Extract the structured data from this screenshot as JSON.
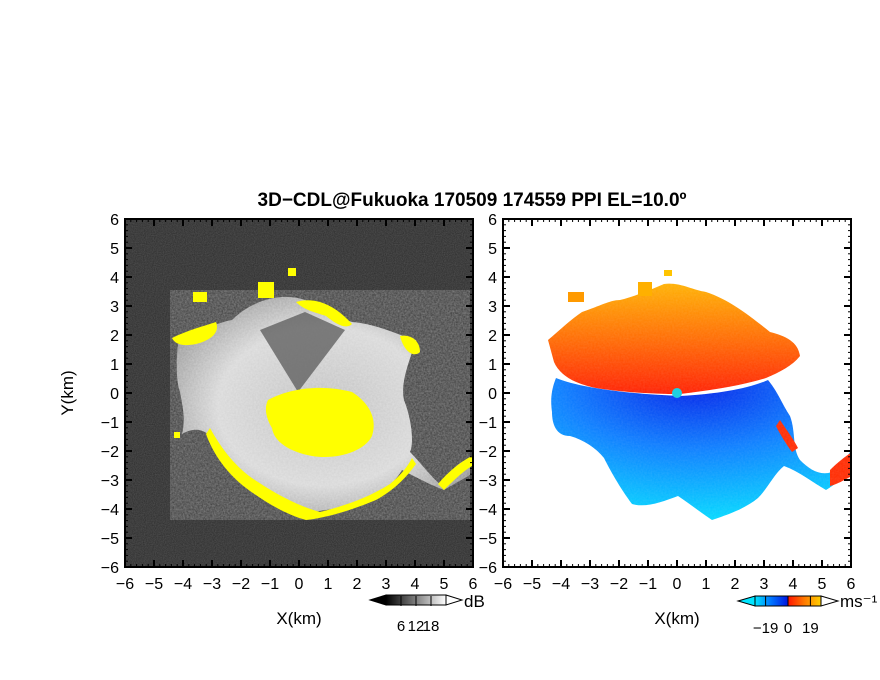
{
  "chart_data": {
    "title": "3D−CDL@Fukuoka 170509 174559 PPI EL=10.0º",
    "panels": [
      {
        "type": "heatmap",
        "name": "reflectivity",
        "xlabel": "X(km)",
        "ylabel": "Y(km)",
        "xlim": [
          -6,
          6
        ],
        "ylim": [
          -6,
          6
        ],
        "x_ticks": [
          -6,
          -5,
          -4,
          -3,
          -2,
          -1,
          0,
          1,
          2,
          3,
          4,
          5,
          6
        ],
        "y_ticks": [
          -6,
          -5,
          -4,
          -3,
          -2,
          -1,
          0,
          1,
          2,
          3,
          4,
          5,
          6
        ],
        "background_color": "#2a2a2a",
        "saturated_color": "#ffff00",
        "colorbar": {
          "unit": "dB",
          "ticks": [
            6,
            12,
            18
          ],
          "range": [
            0,
            24
          ]
        }
      },
      {
        "type": "heatmap",
        "name": "doppler-velocity",
        "xlabel": "X(km)",
        "ylabel": "",
        "xlim": [
          -6,
          6
        ],
        "ylim": [
          -6,
          6
        ],
        "x_ticks": [
          -6,
          -5,
          -4,
          -3,
          -2,
          -1,
          0,
          1,
          2,
          3,
          4,
          5,
          6
        ],
        "y_ticks": [
          -6,
          -5,
          -4,
          -3,
          -2,
          -1,
          0,
          1,
          2,
          3,
          4,
          5,
          6
        ],
        "colorbar": {
          "unit": "ms⁻¹",
          "ticks": [
            -19,
            0,
            19
          ],
          "range": [
            -28,
            28
          ],
          "colors": [
            "#00e5ff",
            "#0072ff",
            "#0018e0",
            "#ff1800",
            "#ff7a00",
            "#ffd000"
          ]
        }
      }
    ]
  }
}
